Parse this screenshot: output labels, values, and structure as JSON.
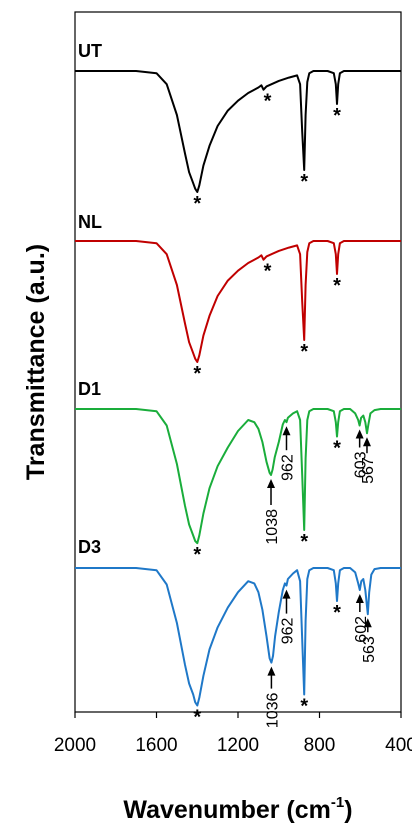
{
  "chart_data": {
    "type": "line",
    "xlabel": "Wavenumber (cm-1)",
    "xlabel_main": "Wavenumber (cm",
    "xlabel_sup": "-1",
    "xlabel_end": ")",
    "ylabel": "Transmittance (a.u.)",
    "xlim": [
      2000,
      400
    ],
    "x_reversed": true,
    "x_ticks": [
      2000,
      1600,
      1200,
      800,
      400
    ],
    "y_ticks": "none",
    "grid": false,
    "legend": "none",
    "series": [
      {
        "name": "UT",
        "color": "#000000",
        "x": [
          2000,
          1800,
          1760,
          1700,
          1600,
          1550,
          1500,
          1460,
          1440,
          1420,
          1410,
          1400,
          1390,
          1370,
          1340,
          1300,
          1250,
          1200,
          1150,
          1100,
          1085,
          1075,
          1060,
          1000,
          950,
          910,
          895,
          885,
          875,
          868,
          860,
          850,
          830,
          800,
          760,
          730,
          720,
          714,
          708,
          700,
          680,
          650,
          600,
          550,
          500,
          450,
          400
        ],
        "y": [
          0,
          0,
          0,
          0,
          -2,
          -12,
          -40,
          -75,
          -92,
          -102,
          -107,
          -110,
          -104,
          -86,
          -68,
          -50,
          -36,
          -27,
          -20,
          -15,
          -13,
          -17,
          -14,
          -9,
          -6,
          -4,
          -12,
          -55,
          -90,
          -40,
          -10,
          -2,
          0,
          0,
          0,
          -2,
          -12,
          -30,
          -12,
          -2,
          0,
          0,
          0,
          0,
          0,
          0,
          0
        ]
      },
      {
        "name": "NL",
        "color": "#c00000",
        "x": [
          2000,
          1800,
          1760,
          1700,
          1600,
          1550,
          1500,
          1460,
          1440,
          1420,
          1410,
          1400,
          1390,
          1370,
          1340,
          1300,
          1250,
          1200,
          1150,
          1100,
          1085,
          1075,
          1060,
          1000,
          950,
          910,
          895,
          885,
          875,
          868,
          860,
          850,
          830,
          800,
          760,
          730,
          720,
          714,
          708,
          700,
          680,
          650,
          600,
          550,
          500,
          450,
          400
        ],
        "y": [
          0,
          0,
          0,
          0,
          -2,
          -12,
          -40,
          -75,
          -92,
          -102,
          -107,
          -110,
          -104,
          -86,
          -68,
          -50,
          -36,
          -27,
          -20,
          -15,
          -13,
          -17,
          -14,
          -9,
          -6,
          -4,
          -12,
          -55,
          -90,
          -40,
          -10,
          -2,
          0,
          0,
          0,
          -2,
          -12,
          -30,
          -12,
          -2,
          0,
          0,
          0,
          0,
          0,
          0,
          0
        ]
      },
      {
        "name": "D1",
        "color": "#1aad3b",
        "x": [
          2000,
          1800,
          1760,
          1700,
          1600,
          1550,
          1500,
          1460,
          1440,
          1420,
          1410,
          1400,
          1390,
          1370,
          1340,
          1300,
          1250,
          1200,
          1150,
          1120,
          1100,
          1080,
          1060,
          1045,
          1038,
          1030,
          1020,
          1000,
          980,
          970,
          962,
          955,
          930,
          910,
          895,
          885,
          875,
          868,
          860,
          850,
          830,
          800,
          760,
          730,
          720,
          714,
          708,
          700,
          680,
          650,
          625,
          610,
          603,
          596,
          585,
          575,
          567,
          560,
          550,
          530,
          500,
          450,
          400
        ],
        "y": [
          0,
          0,
          0,
          0,
          -2,
          -15,
          -50,
          -88,
          -105,
          -115,
          -120,
          -122,
          -115,
          -95,
          -72,
          -52,
          -35,
          -20,
          -10,
          -12,
          -18,
          -30,
          -48,
          -58,
          -60,
          -55,
          -44,
          -30,
          -14,
          -10,
          -12,
          -8,
          -4,
          -2,
          -10,
          -60,
          -110,
          -45,
          -10,
          -2,
          0,
          0,
          0,
          -2,
          -12,
          -25,
          -12,
          -2,
          0,
          0,
          -4,
          -10,
          -15,
          -8,
          -6,
          -12,
          -22,
          -14,
          -4,
          -1,
          0,
          0,
          0
        ]
      },
      {
        "name": "D3",
        "color": "#1f78c8",
        "x": [
          2000,
          1800,
          1760,
          1700,
          1600,
          1550,
          1500,
          1460,
          1440,
          1420,
          1410,
          1400,
          1390,
          1370,
          1340,
          1300,
          1250,
          1200,
          1150,
          1120,
          1100,
          1080,
          1060,
          1045,
          1036,
          1028,
          1018,
          1000,
          980,
          970,
          962,
          955,
          930,
          910,
          895,
          885,
          875,
          868,
          860,
          850,
          830,
          800,
          760,
          730,
          720,
          714,
          708,
          700,
          680,
          650,
          625,
          610,
          602,
          595,
          585,
          575,
          563,
          556,
          546,
          530,
          500,
          450,
          400
        ],
        "y": [
          0,
          0,
          0,
          0,
          -2,
          -15,
          -50,
          -88,
          -105,
          -115,
          -122,
          -125,
          -118,
          -98,
          -74,
          -54,
          -36,
          -22,
          -12,
          -14,
          -22,
          -38,
          -62,
          -82,
          -86,
          -80,
          -62,
          -40,
          -20,
          -14,
          -16,
          -10,
          -5,
          -2,
          -12,
          -65,
          -115,
          -48,
          -10,
          -2,
          0,
          0,
          0,
          -2,
          -14,
          -30,
          -14,
          -2,
          0,
          0,
          -4,
          -14,
          -20,
          -12,
          -10,
          -20,
          -42,
          -22,
          -6,
          -1,
          0,
          0,
          0
        ]
      }
    ],
    "annotations": {
      "asterisk": "*",
      "UT": [
        {
          "x": 1400,
          "text": "*"
        },
        {
          "x": 1075,
          "text": "*"
        },
        {
          "x": 875,
          "text": "*"
        },
        {
          "x": 714,
          "text": "*"
        }
      ],
      "NL": [
        {
          "x": 1400,
          "text": "*"
        },
        {
          "x": 1075,
          "text": "*"
        },
        {
          "x": 875,
          "text": "*"
        },
        {
          "x": 714,
          "text": "*"
        }
      ],
      "D1": [
        {
          "x": 1400,
          "text": "*"
        },
        {
          "x": 875,
          "text": "*"
        },
        {
          "x": 714,
          "text": "*"
        }
      ],
      "D3": [
        {
          "x": 1400,
          "text": "*"
        },
        {
          "x": 875,
          "text": "*"
        },
        {
          "x": 714,
          "text": "*"
        }
      ],
      "D1_labels": [
        "1038",
        "962",
        "603",
        "567"
      ],
      "D3_labels": [
        "1036",
        "962",
        "602",
        "563"
      ]
    }
  }
}
